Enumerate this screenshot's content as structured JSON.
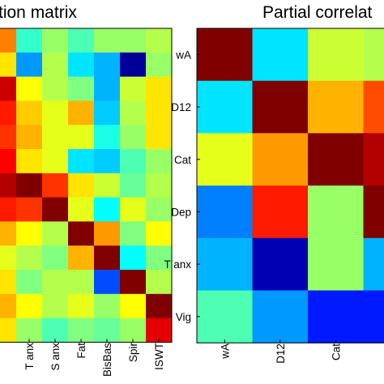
{
  "chart_data": [
    {
      "type": "heatmap",
      "title": "tion matrix",
      "x_tick_labels": [
        "",
        "T anx",
        "S anx",
        "Fat",
        "BisBas",
        "Spir",
        "ISWT"
      ],
      "y_tick_labels": [],
      "colormap": "jet",
      "color_range": [
        -1,
        1
      ],
      "rows": 13,
      "cols": 7,
      "values": [
        [
          0.5,
          -0.15,
          0.05,
          -0.1,
          0.05,
          0.05,
          0.1
        ],
        [
          0.3,
          -0.45,
          0.1,
          -0.3,
          -0.4,
          -0.95,
          0.05
        ],
        [
          0.85,
          0.25,
          0.1,
          0.0,
          -0.4,
          0.15,
          0.3
        ],
        [
          0.7,
          0.35,
          0.2,
          0.4,
          -0.35,
          0.1,
          0.3
        ],
        [
          0.65,
          0.4,
          0.2,
          0.2,
          -0.2,
          0.05,
          0.3
        ],
        [
          0.75,
          0.3,
          0.2,
          -0.3,
          -0.35,
          -0.1,
          0.05
        ],
        [
          0.9,
          1.0,
          0.65,
          0.3,
          0.15,
          -0.05,
          0.1
        ],
        [
          0.7,
          0.65,
          1.0,
          0.2,
          -0.25,
          0.2,
          0.05
        ],
        [
          0.4,
          0.25,
          0.1,
          1.0,
          0.45,
          0.0,
          0.25
        ],
        [
          0.2,
          0.1,
          0.0,
          0.4,
          1.0,
          -0.25,
          0.0
        ],
        [
          0.3,
          0.0,
          0.1,
          0.1,
          -0.6,
          1.0,
          0.1
        ],
        [
          0.4,
          0.25,
          0.1,
          0.2,
          0.05,
          0.25,
          1.0
        ],
        [
          0.3,
          0.05,
          -0.1,
          0.0,
          -0.05,
          0.05,
          0.8
        ]
      ]
    },
    {
      "type": "heatmap",
      "title": "Partial correlat",
      "x_tick_labels": [
        "wA",
        "D12",
        "Cat",
        ""
      ],
      "y_tick_labels": [
        "wA",
        "D12",
        "Cat",
        "Dep",
        "T anx",
        "Vig"
      ],
      "colormap": "jet",
      "color_range": [
        -1,
        1
      ],
      "rows": 6,
      "cols": 4,
      "values": [
        [
          1.0,
          -0.3,
          0.15,
          0.1
        ],
        [
          -0.3,
          1.0,
          0.4,
          0.6
        ],
        [
          0.2,
          0.45,
          1.0,
          0.9
        ],
        [
          -0.5,
          0.7,
          0.05,
          1.0
        ],
        [
          -0.4,
          -0.9,
          0.05,
          -0.4
        ],
        [
          -0.1,
          -0.45,
          -0.7,
          -0.7
        ]
      ]
    }
  ]
}
